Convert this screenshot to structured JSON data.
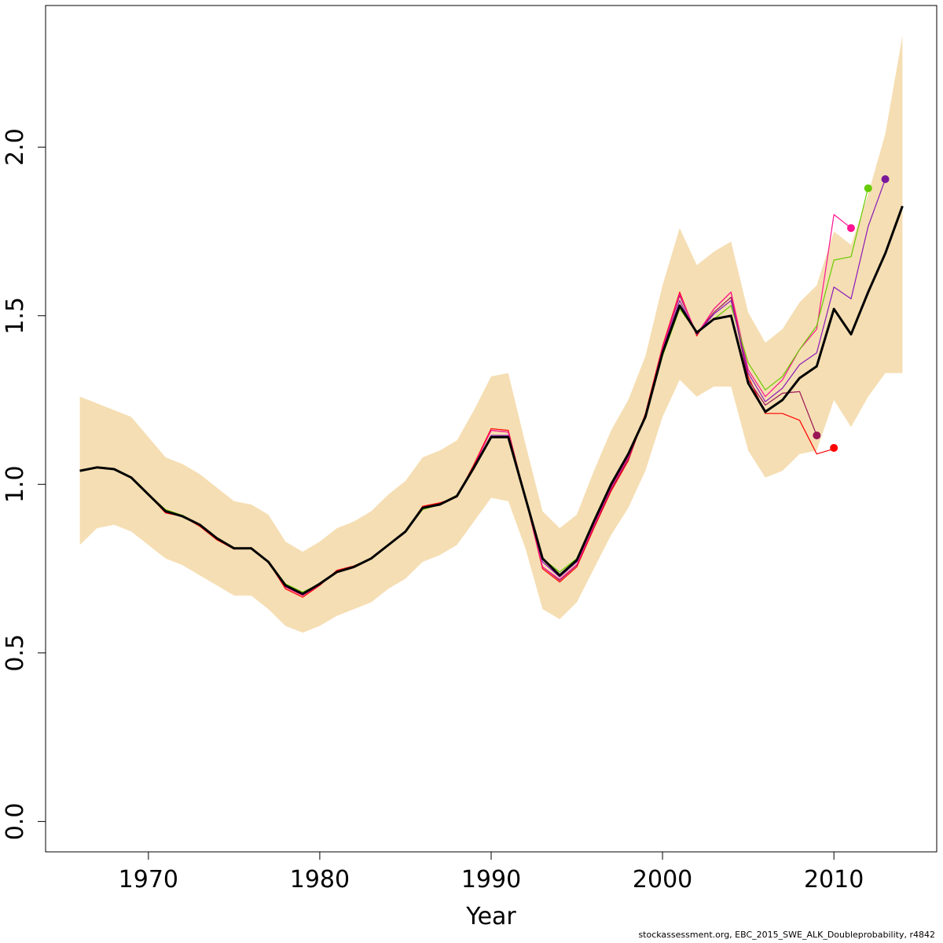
{
  "chart_data": {
    "type": "line",
    "title": "",
    "xlabel": "Year",
    "ylabel": "",
    "xlim": [
      1964.0,
      2016.0
    ],
    "ylim": [
      -0.09,
      2.42
    ],
    "x_ticks": [
      1970,
      1980,
      1990,
      2000,
      2010
    ],
    "y_ticks": [
      0.0,
      0.5,
      1.0,
      1.5,
      2.0
    ],
    "grid": false,
    "legend": "none",
    "band": {
      "color": "#f5deb3",
      "years": [
        1966,
        1967,
        1968,
        1969,
        1970,
        1971,
        1972,
        1973,
        1974,
        1975,
        1976,
        1977,
        1978,
        1979,
        1980,
        1981,
        1982,
        1983,
        1984,
        1985,
        1986,
        1987,
        1988,
        1989,
        1990,
        1991,
        1992,
        1993,
        1994,
        1995,
        1996,
        1997,
        1998,
        1999,
        2000,
        2001,
        2002,
        2003,
        2004,
        2005,
        2006,
        2007,
        2008,
        2009,
        2010,
        2011,
        2012,
        2013,
        2014
      ],
      "upper": [
        1.26,
        1.24,
        1.22,
        1.2,
        1.14,
        1.08,
        1.06,
        1.03,
        0.99,
        0.95,
        0.94,
        0.91,
        0.83,
        0.8,
        0.83,
        0.87,
        0.89,
        0.92,
        0.97,
        1.01,
        1.08,
        1.1,
        1.13,
        1.22,
        1.32,
        1.33,
        1.12,
        0.92,
        0.87,
        0.91,
        1.04,
        1.16,
        1.25,
        1.38,
        1.59,
        1.76,
        1.65,
        1.69,
        1.72,
        1.51,
        1.42,
        1.46,
        1.54,
        1.59,
        1.75,
        1.71,
        1.86,
        2.04,
        2.33
      ],
      "lower": [
        0.82,
        0.87,
        0.88,
        0.86,
        0.82,
        0.78,
        0.76,
        0.73,
        0.7,
        0.67,
        0.67,
        0.63,
        0.58,
        0.56,
        0.58,
        0.61,
        0.63,
        0.65,
        0.69,
        0.72,
        0.77,
        0.79,
        0.82,
        0.89,
        0.96,
        0.95,
        0.81,
        0.63,
        0.6,
        0.65,
        0.75,
        0.85,
        0.93,
        1.04,
        1.2,
        1.31,
        1.26,
        1.29,
        1.29,
        1.1,
        1.02,
        1.04,
        1.09,
        1.1,
        1.25,
        1.17,
        1.26,
        1.33,
        1.33
      ]
    },
    "series": [
      {
        "color": "#000000",
        "width": 3,
        "x": [
          1966,
          1967,
          1968,
          1969,
          1970,
          1971,
          1972,
          1973,
          1974,
          1975,
          1976,
          1977,
          1978,
          1979,
          1980,
          1981,
          1982,
          1983,
          1984,
          1985,
          1986,
          1987,
          1988,
          1989,
          1990,
          1991,
          1992,
          1993,
          1994,
          1995,
          1996,
          1997,
          1998,
          1999,
          2000,
          2001,
          2002,
          2003,
          2004,
          2005,
          2006,
          2007,
          2008,
          2009,
          2010,
          2011,
          2012,
          2013,
          2014
        ],
        "y": [
          1.04,
          1.05,
          1.045,
          1.02,
          0.97,
          0.92,
          0.905,
          0.88,
          0.84,
          0.81,
          0.81,
          0.77,
          0.7,
          0.675,
          0.705,
          0.74,
          0.755,
          0.78,
          0.82,
          0.86,
          0.93,
          0.94,
          0.965,
          1.05,
          1.14,
          1.14,
          0.96,
          0.78,
          0.73,
          0.775,
          0.89,
          1.0,
          1.09,
          1.2,
          1.39,
          1.53,
          1.45,
          1.49,
          1.5,
          1.3,
          1.215,
          1.25,
          1.315,
          1.35,
          1.52,
          1.445,
          1.57,
          1.685,
          1.825
        ]
      },
      {
        "color": "#ff0000",
        "width": 1.2,
        "x": [
          1966,
          1967,
          1968,
          1969,
          1970,
          1971,
          1972,
          1973,
          1974,
          1975,
          1976,
          1977,
          1978,
          1979,
          1980,
          1981,
          1982,
          1983,
          1984,
          1985,
          1986,
          1987,
          1988,
          1989,
          1990,
          1991,
          1992,
          1993,
          1994,
          1995,
          1996,
          1997,
          1998,
          1999,
          2000,
          2001,
          2002,
          2003,
          2004,
          2005,
          2006,
          2007,
          2008,
          2009,
          2010
        ],
        "y": [
          1.04,
          1.05,
          1.045,
          1.02,
          0.97,
          0.915,
          0.905,
          0.875,
          0.835,
          0.808,
          0.812,
          0.77,
          0.69,
          0.665,
          0.7,
          0.745,
          0.758,
          0.78,
          0.82,
          0.86,
          0.935,
          0.945,
          0.962,
          1.06,
          1.165,
          1.16,
          0.96,
          0.75,
          0.71,
          0.755,
          0.87,
          0.98,
          1.07,
          1.21,
          1.41,
          1.57,
          1.44,
          1.52,
          1.57,
          1.32,
          1.21,
          1.21,
          1.19,
          1.09,
          1.105
        ]
      },
      {
        "color": "#991655",
        "width": 1.2,
        "x": [
          1966,
          1967,
          1968,
          1969,
          1970,
          1971,
          1972,
          1973,
          1974,
          1975,
          1976,
          1977,
          1978,
          1979,
          1980,
          1981,
          1982,
          1983,
          1984,
          1985,
          1986,
          1987,
          1988,
          1989,
          1990,
          1991,
          1992,
          1993,
          1994,
          1995,
          1996,
          1997,
          1998,
          1999,
          2000,
          2001,
          2002,
          2003,
          2004,
          2005,
          2006,
          2007,
          2008,
          2009
        ],
        "y": [
          1.04,
          1.05,
          1.045,
          1.02,
          0.97,
          0.918,
          0.905,
          0.878,
          0.838,
          0.81,
          0.81,
          0.77,
          0.695,
          0.67,
          0.702,
          0.742,
          0.756,
          0.78,
          0.82,
          0.86,
          0.932,
          0.942,
          0.963,
          1.055,
          1.16,
          1.155,
          0.96,
          0.755,
          0.715,
          0.76,
          0.875,
          0.985,
          1.075,
          1.205,
          1.4,
          1.56,
          1.445,
          1.51,
          1.555,
          1.31,
          1.235,
          1.27,
          1.275,
          1.145
        ]
      },
      {
        "color": "#ff1493",
        "width": 1.2,
        "x": [
          1966,
          1967,
          1968,
          1969,
          1970,
          1971,
          1972,
          1973,
          1974,
          1975,
          1976,
          1977,
          1978,
          1979,
          1980,
          1981,
          1982,
          1983,
          1984,
          1985,
          1986,
          1987,
          1988,
          1989,
          1990,
          1991,
          1992,
          1993,
          1994,
          1995,
          1996,
          1997,
          1998,
          1999,
          2000,
          2001,
          2002,
          2003,
          2004,
          2005,
          2006,
          2007,
          2008,
          2009,
          2010,
          2011
        ],
        "y": [
          1.04,
          1.05,
          1.045,
          1.02,
          0.97,
          0.918,
          0.905,
          0.878,
          0.838,
          0.81,
          0.812,
          0.77,
          0.695,
          0.67,
          0.702,
          0.742,
          0.756,
          0.78,
          0.82,
          0.86,
          0.932,
          0.942,
          0.963,
          1.055,
          1.16,
          1.155,
          0.96,
          0.755,
          0.718,
          0.762,
          0.878,
          0.99,
          1.08,
          1.205,
          1.405,
          1.565,
          1.445,
          1.52,
          1.57,
          1.34,
          1.26,
          1.31,
          1.4,
          1.46,
          1.8,
          1.76
        ]
      },
      {
        "color": "#66cc00",
        "width": 1.2,
        "x": [
          1966,
          1967,
          1968,
          1969,
          1970,
          1971,
          1972,
          1973,
          1974,
          1975,
          1976,
          1977,
          1978,
          1979,
          1980,
          1981,
          1982,
          1983,
          1984,
          1985,
          1986,
          1987,
          1988,
          1989,
          1990,
          1991,
          1992,
          1993,
          1994,
          1995,
          1996,
          1997,
          1998,
          1999,
          2000,
          2001,
          2002,
          2003,
          2004,
          2005,
          2006,
          2007,
          2008,
          2009,
          2010,
          2011,
          2012
        ],
        "y": [
          1.04,
          1.05,
          1.045,
          1.02,
          0.97,
          0.925,
          0.908,
          0.88,
          0.842,
          0.81,
          0.81,
          0.77,
          0.705,
          0.68,
          0.705,
          0.74,
          0.755,
          0.78,
          0.82,
          0.86,
          0.925,
          0.94,
          0.968,
          1.05,
          1.14,
          1.14,
          0.96,
          0.78,
          0.74,
          0.78,
          0.895,
          1.005,
          1.09,
          1.2,
          1.38,
          1.52,
          1.45,
          1.49,
          1.53,
          1.36,
          1.28,
          1.32,
          1.4,
          1.47,
          1.665,
          1.675,
          1.88
        ]
      },
      {
        "color": "#8b1ab8",
        "width": 1.2,
        "x": [
          1966,
          1967,
          1968,
          1969,
          1970,
          1971,
          1972,
          1973,
          1974,
          1975,
          1976,
          1977,
          1978,
          1979,
          1980,
          1981,
          1982,
          1983,
          1984,
          1985,
          1986,
          1987,
          1988,
          1989,
          1990,
          1991,
          1992,
          1993,
          1994,
          1995,
          1996,
          1997,
          1998,
          1999,
          2000,
          2001,
          2002,
          2003,
          2004,
          2005,
          2006,
          2007,
          2008,
          2009,
          2010,
          2011,
          2012,
          2013
        ],
        "y": [
          1.04,
          1.05,
          1.045,
          1.02,
          0.97,
          0.92,
          0.905,
          0.88,
          0.84,
          0.81,
          0.81,
          0.77,
          0.7,
          0.675,
          0.705,
          0.74,
          0.755,
          0.78,
          0.82,
          0.86,
          0.93,
          0.94,
          0.965,
          1.05,
          1.145,
          1.145,
          0.96,
          0.77,
          0.725,
          0.77,
          0.885,
          0.995,
          1.085,
          1.205,
          1.395,
          1.545,
          1.445,
          1.505,
          1.545,
          1.33,
          1.245,
          1.285,
          1.355,
          1.39,
          1.585,
          1.55,
          1.765,
          1.905
        ]
      }
    ],
    "endpoints": [
      {
        "x": 2009,
        "y": 1.145,
        "color": "#991655"
      },
      {
        "x": 2010,
        "y": 1.108,
        "color": "#ff0000"
      },
      {
        "x": 2011,
        "y": 1.76,
        "color": "#ff1493"
      },
      {
        "x": 2012,
        "y": 1.878,
        "color": "#66cc00"
      },
      {
        "x": 2013,
        "y": 1.905,
        "color": "#7a1a9a"
      }
    ]
  },
  "footer": {
    "note": "stockassessment.org, EBC_2015_SWE_ALK_Doubleprobability, r4842"
  }
}
